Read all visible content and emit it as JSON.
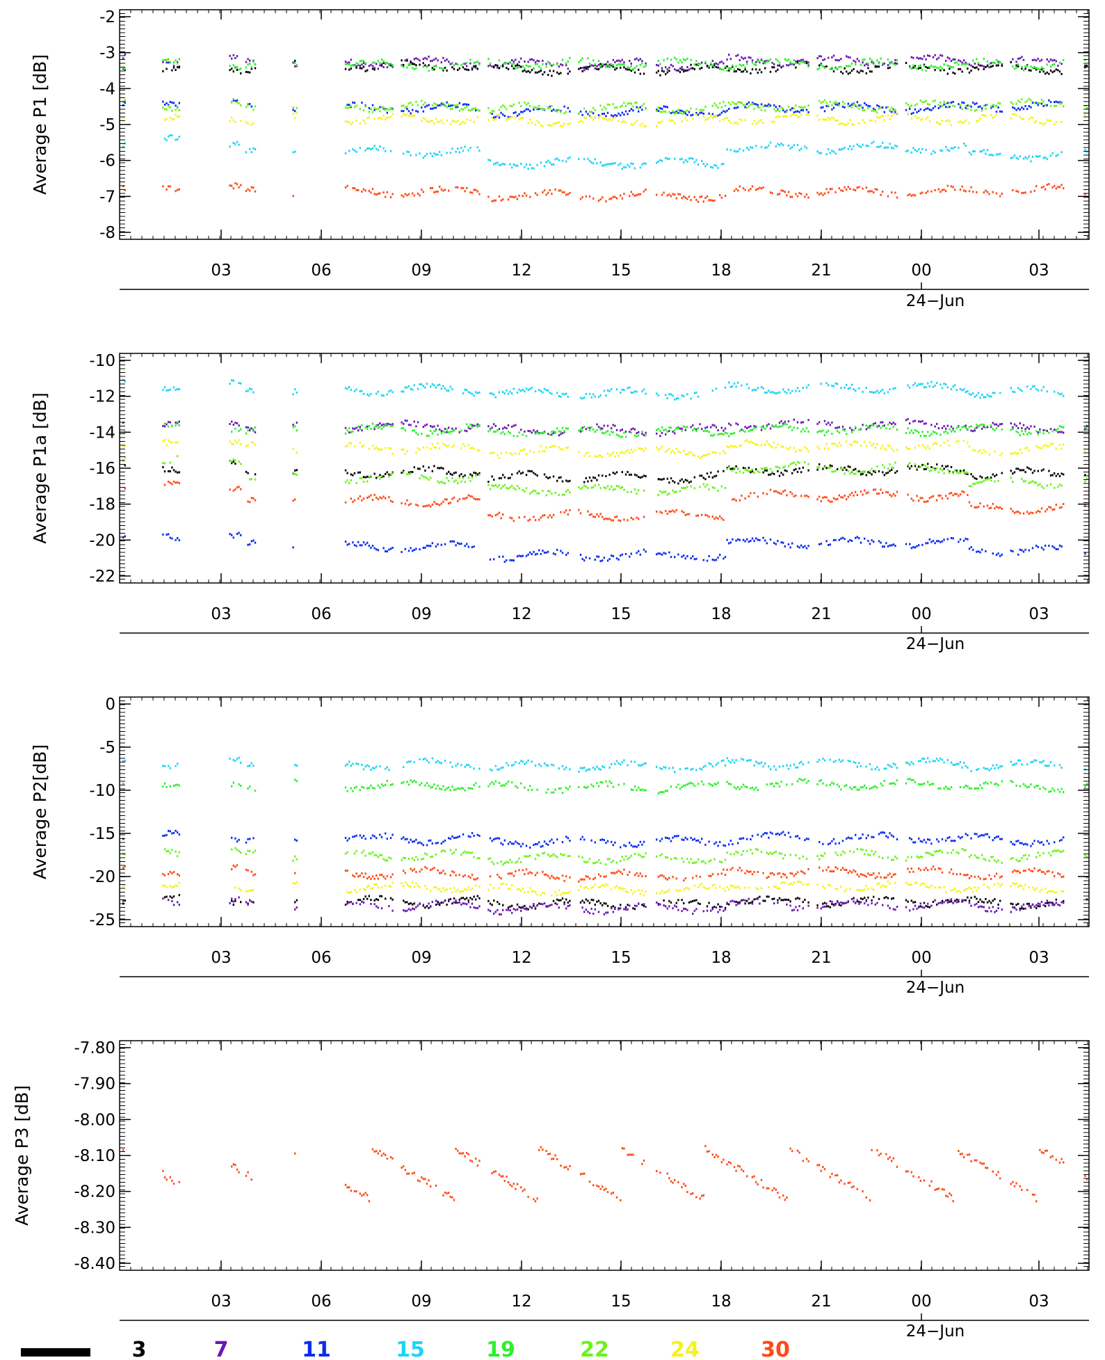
{
  "colors": {
    "c3": "#000000",
    "c7": "#6a16b4",
    "c11": "#0a2cf0",
    "c15": "#1ed4f4",
    "c19": "#2cf02c",
    "c22": "#6cf21c",
    "c24": "#f6f21a",
    "c30": "#ff4a14"
  },
  "legend_labels": [
    "3",
    "7",
    "11",
    "15",
    "19",
    "22",
    "24",
    "30"
  ],
  "chart_data": [
    {
      "type": "scatter",
      "ylabel": "Average P1 [dB]",
      "ylim": [
        -8.2,
        -1.9
      ],
      "yticks": [
        "-2",
        "-3",
        "-4",
        "-5",
        "-6",
        "-7",
        "-8"
      ],
      "x_tick_labels": [
        "03",
        "06",
        "09",
        "12",
        "15",
        "18",
        "21",
        "00",
        "03"
      ],
      "date_label": "24−Jun",
      "series": [
        {
          "name": "7",
          "color_key": "c7",
          "y": -3.3,
          "values": [
            -3.3,
            -3.35,
            -3.4,
            -3.3,
            -3.35
          ]
        },
        {
          "name": "3",
          "color_key": "c3",
          "y": -3.5,
          "values": [
            -3.5,
            -3.45,
            -3.55,
            -3.5,
            -3.5
          ]
        },
        {
          "name": "19",
          "color_key": "c19",
          "y": -3.4,
          "values": [
            -3.4,
            -3.42,
            -3.38,
            -3.4,
            -3.4
          ]
        },
        {
          "name": "11",
          "color_key": "c11",
          "y": -4.6,
          "values": [
            -4.5,
            -4.6,
            -4.7,
            -4.6,
            -4.55
          ]
        },
        {
          "name": "22",
          "color_key": "c22",
          "y": -4.55,
          "values": [
            -4.5,
            -4.55,
            -4.6,
            -4.55,
            -4.5
          ]
        },
        {
          "name": "24",
          "color_key": "c24",
          "y": -4.9,
          "values": [
            -4.85,
            -4.9,
            -4.95,
            -4.9,
            -4.9
          ]
        },
        {
          "name": "15",
          "color_key": "c15",
          "y": -5.8,
          "values": [
            -5.5,
            -5.8,
            -6.1,
            -5.7,
            -5.9
          ]
        },
        {
          "name": "30",
          "color_key": "c30",
          "y": -6.9,
          "values": [
            -6.8,
            -6.9,
            -7.0,
            -6.9,
            -6.85
          ]
        }
      ]
    },
    {
      "type": "scatter",
      "ylabel": "Average P1a [dB]",
      "ylim": [
        -22.3,
        -9.7
      ],
      "yticks": [
        "-10",
        "-12",
        "-14",
        "-16",
        "-18",
        "-20",
        "-22"
      ],
      "x_tick_labels": [
        "03",
        "06",
        "09",
        "12",
        "15",
        "18",
        "21",
        "00",
        "03"
      ],
      "date_label": "24−Jun",
      "series": [
        {
          "name": "15",
          "color_key": "c15",
          "y": -11.7,
          "values": [
            -11.5,
            -11.7,
            -11.9,
            -11.6,
            -11.8
          ]
        },
        {
          "name": "7",
          "color_key": "c7",
          "y": -13.7,
          "values": [
            -13.5,
            -13.7,
            -13.9,
            -13.6,
            -13.8
          ]
        },
        {
          "name": "19",
          "color_key": "c19",
          "y": -13.9,
          "values": [
            -13.8,
            -13.9,
            -14.0,
            -13.9,
            -13.9
          ]
        },
        {
          "name": "24",
          "color_key": "c24",
          "y": -14.9,
          "values": [
            -14.7,
            -14.9,
            -15.1,
            -14.8,
            -15.0
          ]
        },
        {
          "name": "3",
          "color_key": "c3",
          "y": -16.2,
          "values": [
            -15.9,
            -16.2,
            -16.5,
            -16.1,
            -16.3
          ]
        },
        {
          "name": "22",
          "color_key": "c22",
          "y": -16.5,
          "values": [
            -15.5,
            -16.5,
            -17.2,
            -16.0,
            -16.8
          ]
        },
        {
          "name": "30",
          "color_key": "c30",
          "y": -17.8,
          "values": [
            -17.0,
            -17.8,
            -18.6,
            -17.5,
            -18.2
          ]
        },
        {
          "name": "11",
          "color_key": "c11",
          "y": -20.3,
          "values": [
            -19.8,
            -20.3,
            -20.8,
            -20.1,
            -20.5
          ]
        }
      ]
    },
    {
      "type": "scatter",
      "ylabel": "Average P2[dB]",
      "ylim": [
        -25.7,
        0.5
      ],
      "yticks": [
        "0",
        "-5",
        "-10",
        "-15",
        "-20",
        "-25"
      ],
      "x_tick_labels": [
        "03",
        "06",
        "09",
        "12",
        "15",
        "18",
        "21",
        "00",
        "03"
      ],
      "date_label": "24−Jun",
      "series": [
        {
          "name": "15",
          "color_key": "c15",
          "y": -7.2,
          "values": [
            -7.0,
            -7.2,
            -7.4,
            -7.1,
            -7.3
          ]
        },
        {
          "name": "19",
          "color_key": "c19",
          "y": -9.6,
          "values": [
            -9.4,
            -9.6,
            -9.8,
            -9.5,
            -9.7
          ]
        },
        {
          "name": "11",
          "color_key": "c11",
          "y": -15.7,
          "values": [
            -15.4,
            -15.7,
            -16.0,
            -15.6,
            -15.8
          ]
        },
        {
          "name": "22",
          "color_key": "c22",
          "y": -17.6,
          "values": [
            -17.3,
            -17.6,
            -17.9,
            -17.5,
            -17.7
          ]
        },
        {
          "name": "30",
          "color_key": "c30",
          "y": -19.6,
          "values": [
            -19.3,
            -19.6,
            -19.9,
            -19.5,
            -19.7
          ]
        },
        {
          "name": "24",
          "color_key": "c24",
          "y": -21.2,
          "values": [
            -20.9,
            -21.2,
            -21.5,
            -21.1,
            -21.3
          ]
        },
        {
          "name": "3",
          "color_key": "c3",
          "y": -22.9,
          "values": [
            -22.6,
            -22.9,
            -23.1,
            -22.8,
            -23.0
          ]
        },
        {
          "name": "7",
          "color_key": "c7",
          "y": -23.3,
          "values": [
            -23.0,
            -23.3,
            -23.6,
            -23.2,
            -23.4
          ]
        }
      ]
    },
    {
      "type": "scatter",
      "ylabel": "Average P3 [dB]",
      "ylim": [
        -8.415,
        -7.785
      ],
      "yticks": [
        "-7.80",
        "-7.90",
        "-8.00",
        "-8.10",
        "-8.20",
        "-8.30",
        "-8.40"
      ],
      "x_tick_labels": [
        "03",
        "06",
        "09",
        "12",
        "15",
        "18",
        "21",
        "00",
        "03"
      ],
      "date_label": "24−Jun",
      "series": [
        {
          "name": "30",
          "color_key": "c30",
          "y": -8.15,
          "values": [
            -8.07,
            -8.15,
            -8.22,
            -8.1,
            -8.18
          ]
        }
      ]
    }
  ]
}
